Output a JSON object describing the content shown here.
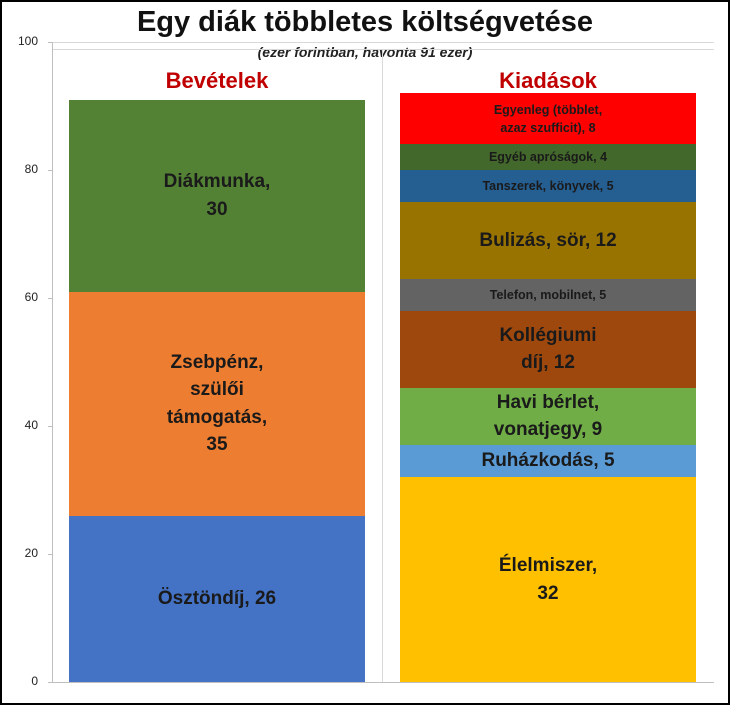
{
  "chart_data": {
    "type": "stacked_bar",
    "title": "Egy diák többletes költségvetése",
    "subtitle": "(ezer forintban, havonta 91 ezer)",
    "categories": [
      "Bevételek",
      "Kiadások"
    ],
    "category_color": "#c00000",
    "ylim": [
      0,
      100
    ],
    "yticks": [
      0,
      20,
      40,
      60,
      80,
      100
    ],
    "stacks": [
      [
        {
          "label": "Ösztöndíj,  26",
          "value": 26,
          "color": "#4472c4"
        },
        {
          "label": "Zsebpénz,\nszülői\ntámogatás,\n35",
          "value": 35,
          "color": "#ed7d31"
        },
        {
          "label": "Diákmunka,\n30",
          "value": 30,
          "color": "#548235"
        }
      ],
      [
        {
          "label": "Élelmiszer,\n32",
          "value": 32,
          "color": "#ffc000"
        },
        {
          "label": "Ruházkodás,   5",
          "value": 5,
          "color": "#5b9bd5"
        },
        {
          "label": "Havi bérlet,\nvonatjegy,  9",
          "value": 9,
          "color": "#70ad47"
        },
        {
          "label": "Kollégiumi\ndíj,  12",
          "value": 12,
          "color": "#9e480e"
        },
        {
          "label": "Telefon, mobilnet,  5",
          "value": 5,
          "color": "#636363"
        },
        {
          "label": "Bulizás,  sör,   12",
          "value": 12,
          "color": "#997300"
        },
        {
          "label": "Tanszerek, könyvek,  5",
          "value": 5,
          "color": "#255e91"
        },
        {
          "label": "Egyéb apróságok,  4",
          "value": 4,
          "color": "#43682b"
        },
        {
          "label": "Egyenleg (többlet,\nazaz szufficit),  8",
          "value": 8,
          "color": "#ff0000"
        }
      ]
    ]
  }
}
